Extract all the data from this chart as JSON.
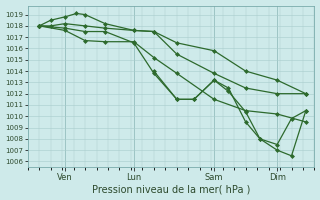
{
  "background_color": "#ceeaea",
  "grid_color": "#a8cccc",
  "line_color": "#2d6a2d",
  "ylim": [
    1005.5,
    1019.8
  ],
  "yticks": [
    1006,
    1007,
    1008,
    1009,
    1010,
    1011,
    1012,
    1013,
    1014,
    1015,
    1016,
    1017,
    1018,
    1019
  ],
  "xlabel": "Pression niveau de la mer( hPa )",
  "xtick_labels": [
    "Ven",
    "Lun",
    "Sam",
    "Dim"
  ],
  "xtick_positions": [
    0.13,
    0.37,
    0.65,
    0.87
  ],
  "series": [
    {
      "x": [
        0.04,
        0.08,
        0.13,
        0.2,
        0.27,
        0.37,
        0.44,
        0.52,
        0.65,
        0.76,
        0.87,
        0.97
      ],
      "y": [
        1018.0,
        1018.0,
        1018.2,
        1018.0,
        1017.8,
        1017.6,
        1017.5,
        1016.5,
        1015.8,
        1014.0,
        1013.2,
        1012.0
      ]
    },
    {
      "x": [
        0.04,
        0.08,
        0.13,
        0.17,
        0.2,
        0.27,
        0.37,
        0.44,
        0.52,
        0.65,
        0.76,
        0.87,
        0.97
      ],
      "y": [
        1018.0,
        1018.5,
        1018.8,
        1019.1,
        1019.0,
        1018.2,
        1017.6,
        1017.5,
        1015.5,
        1013.8,
        1012.5,
        1012.0,
        1012.0
      ]
    },
    {
      "x": [
        0.04,
        0.13,
        0.2,
        0.27,
        0.37,
        0.44,
        0.52,
        0.65,
        0.76,
        0.87,
        0.97
      ],
      "y": [
        1018.0,
        1017.6,
        1016.7,
        1016.6,
        1016.6,
        1015.2,
        1013.8,
        1011.5,
        1010.5,
        1010.2,
        1009.5
      ]
    },
    {
      "x": [
        0.04,
        0.13,
        0.2,
        0.27,
        0.37,
        0.44,
        0.52,
        0.58,
        0.65,
        0.7,
        0.76,
        0.81,
        0.87,
        0.92,
        0.97
      ],
      "y": [
        1018.0,
        1017.8,
        1017.5,
        1017.5,
        1016.5,
        1013.8,
        1011.5,
        1011.5,
        1013.2,
        1012.2,
        1010.4,
        1008.0,
        1007.0,
        1006.5,
        1010.5
      ]
    },
    {
      "x": [
        0.44,
        0.52,
        0.58,
        0.65,
        0.7,
        0.76,
        0.81,
        0.87,
        0.92,
        0.97
      ],
      "y": [
        1014.0,
        1011.5,
        1011.5,
        1013.2,
        1012.5,
        1009.5,
        1008.0,
        1007.5,
        1009.8,
        1010.5
      ]
    }
  ]
}
